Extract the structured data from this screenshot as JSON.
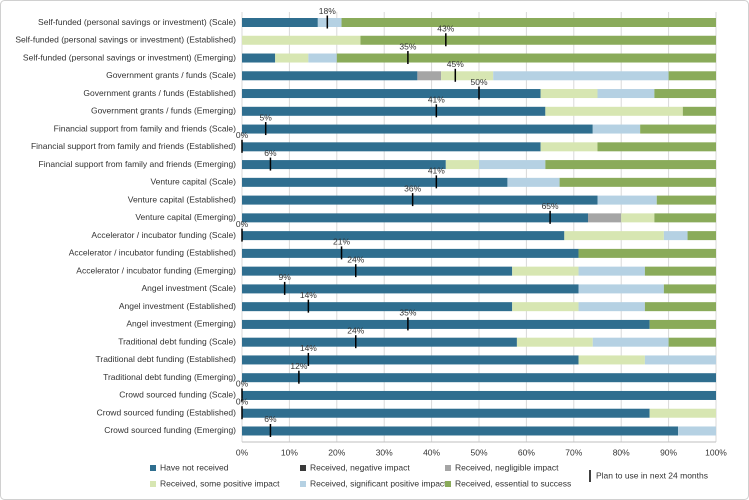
{
  "chart_data": {
    "type": "stacked-barh",
    "categories": [
      "Self-funded (personal savings or investment) (Scale)",
      "Self-funded (personal savings or investment) (Established)",
      "Self-funded (personal savings or investment) (Emerging)",
      "Government grants / funds (Scale)",
      "Government grants / funds (Established)",
      "Government grants / funds (Emerging)",
      "Financial support from family and friends (Scale)",
      "Financial support from family and friends (Established)",
      "Financial support from family and friends (Emerging)",
      "Venture capital (Scale)",
      "Venture capital (Established)",
      "Venture capital (Emerging)",
      "Accelerator / incubator funding (Scale)",
      "Accelerator / incubator funding (Established)",
      "Accelerator / incubator funding (Emerging)",
      "Angel investment (Scale)",
      "Angel investment (Established)",
      "Angel investment (Emerging)",
      "Traditional debt funding (Scale)",
      "Traditional debt funding (Established)",
      "Traditional debt funding (Emerging)",
      "Crowd sourced funding (Scale)",
      "Crowd sourced funding (Established)",
      "Crowd sourced funding (Emerging)"
    ],
    "series": [
      {
        "name": "Have not received",
        "color": "#2f6e8f",
        "values": [
          16,
          0,
          7,
          37,
          63,
          64,
          74,
          63,
          43,
          56,
          75,
          73,
          68,
          71,
          57,
          71,
          57,
          86,
          58,
          71,
          100,
          100,
          86,
          92
        ]
      },
      {
        "name": "Received, negative impact",
        "color": "#3a3a3a",
        "values": [
          0,
          0,
          0,
          0,
          0,
          0,
          0,
          0,
          0,
          0,
          0,
          0,
          0,
          0,
          0,
          0,
          0,
          0,
          0,
          0,
          0,
          0,
          0,
          0
        ]
      },
      {
        "name": "Received, negligible impact",
        "color": "#a5a5a5",
        "values": [
          0,
          0,
          0,
          5,
          0,
          0,
          0,
          0,
          0,
          0,
          0,
          7,
          0,
          0,
          0,
          0,
          0,
          0,
          0,
          0,
          0,
          0,
          0,
          0
        ]
      },
      {
        "name": "Received, some positive impact",
        "color": "#d7e6b2",
        "values": [
          0,
          25,
          7,
          11,
          12,
          29,
          0,
          12,
          7,
          0,
          0,
          7,
          21,
          0,
          14,
          0,
          14,
          0,
          16,
          14,
          0,
          0,
          14,
          0
        ]
      },
      {
        "name": "Received, significant positive impact",
        "color": "#b5d1e3",
        "values": [
          5,
          0,
          6,
          37,
          12,
          0,
          10,
          0,
          14,
          11,
          12.5,
          0,
          5,
          0,
          14,
          18,
          14,
          0,
          16,
          15,
          0,
          0,
          0,
          8
        ]
      },
      {
        "name": "Received, essential to success",
        "color": "#8aab5a",
        "values": [
          79,
          75,
          80,
          10,
          13,
          7,
          16,
          25,
          36,
          33,
          12.5,
          13,
          6,
          29,
          15,
          11,
          15,
          14,
          10,
          0,
          0,
          0,
          0,
          0
        ]
      }
    ],
    "plan": {
      "name": "Plan to use in next 24 months",
      "color": "#000000",
      "values": [
        18,
        43,
        35,
        45,
        50,
        41,
        5,
        0,
        6,
        41,
        36,
        65,
        0,
        21,
        24,
        9,
        14,
        35,
        24,
        14,
        12,
        0,
        0,
        6
      ],
      "value_labels": [
        "18%",
        "43%",
        "35%",
        "45%",
        "50%",
        "41%",
        "5%",
        "0%",
        "6%",
        "41%",
        "36%",
        "65%",
        "0%",
        "21%",
        "24%",
        "9%",
        "14%",
        "35%",
        "24%",
        "14%",
        "12%",
        "0%",
        "0%",
        "6%"
      ]
    },
    "xlim": [
      0,
      100
    ],
    "xticks": [
      {
        "value": 0,
        "label": "0%"
      },
      {
        "value": 10,
        "label": "10%"
      },
      {
        "value": 20,
        "label": "20%"
      },
      {
        "value": 30,
        "label": "30%"
      },
      {
        "value": 40,
        "label": "40%"
      },
      {
        "value": 50,
        "label": "50%"
      },
      {
        "value": 60,
        "label": "60%"
      },
      {
        "value": 70,
        "label": "70%"
      },
      {
        "value": 80,
        "label": "80%"
      },
      {
        "value": 90,
        "label": "90%"
      },
      {
        "value": 100,
        "label": "100%"
      }
    ],
    "grid": true
  }
}
